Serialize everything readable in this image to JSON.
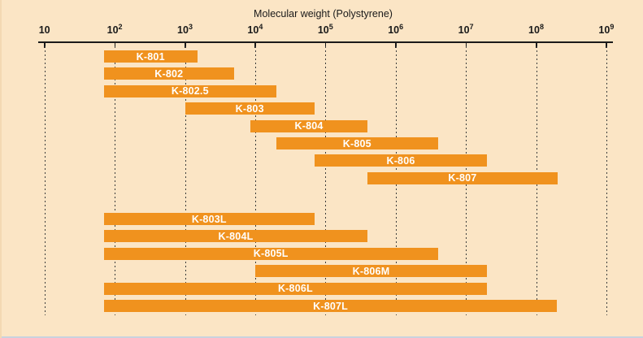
{
  "colors": {
    "background": "#FBE5C5",
    "bar": "#F0921E",
    "bar_label": "#FFFFFF",
    "axis": "#1A1A1A",
    "gridline": "#3C3C3C",
    "bottom_rule": "#C9D2DE"
  },
  "chart_data": {
    "type": "bar",
    "subtype": "horizontal-range-log",
    "title": "Molecular weight (Polystyrene)",
    "xlabel": "Molecular weight (Polystyrene)",
    "x_axis": {
      "scale": "log10",
      "min": 10,
      "max": 1000000000,
      "grid": "dashed-vertical",
      "ticks": [
        {
          "base": "10",
          "exp": "",
          "value": 10
        },
        {
          "base": "10",
          "exp": "2",
          "value": 100
        },
        {
          "base": "10",
          "exp": "3",
          "value": 1000
        },
        {
          "base": "10",
          "exp": "4",
          "value": 10000
        },
        {
          "base": "10",
          "exp": "5",
          "value": 100000
        },
        {
          "base": "10",
          "exp": "6",
          "value": 1000000
        },
        {
          "base": "10",
          "exp": "7",
          "value": 10000000
        },
        {
          "base": "10",
          "exp": "8",
          "value": 100000000
        },
        {
          "base": "10",
          "exp": "9",
          "value": 1000000000
        }
      ]
    },
    "groups": [
      {
        "bars": [
          {
            "label": "K-801",
            "range": [
              70,
              1500
            ]
          },
          {
            "label": "K-802",
            "range": [
              70,
              5000
            ]
          },
          {
            "label": "K-802.5",
            "range": [
              70,
              20000
            ]
          },
          {
            "label": "K-803",
            "range": [
              1000,
              70000
            ]
          },
          {
            "label": "K-804",
            "range": [
              8500,
              400000
            ]
          },
          {
            "label": "K-805",
            "range": [
              20000,
              4000000
            ]
          },
          {
            "label": "K-806",
            "range": [
              70000,
              20000000
            ]
          },
          {
            "label": "K-807",
            "range": [
              400000,
              200000000
            ]
          }
        ]
      },
      {
        "bars": [
          {
            "label": "K-803L",
            "range": [
              70,
              70000
            ]
          },
          {
            "label": "K-804L",
            "range": [
              70,
              400000
            ]
          },
          {
            "label": "K-805L",
            "range": [
              70,
              4000000
            ]
          },
          {
            "label": "K-806M",
            "range": [
              10000,
              20000000
            ]
          },
          {
            "label": "K-806L",
            "range": [
              70,
              20000000
            ]
          },
          {
            "label": "K-807L",
            "range": [
              70,
              200000000
            ]
          }
        ]
      }
    ]
  }
}
